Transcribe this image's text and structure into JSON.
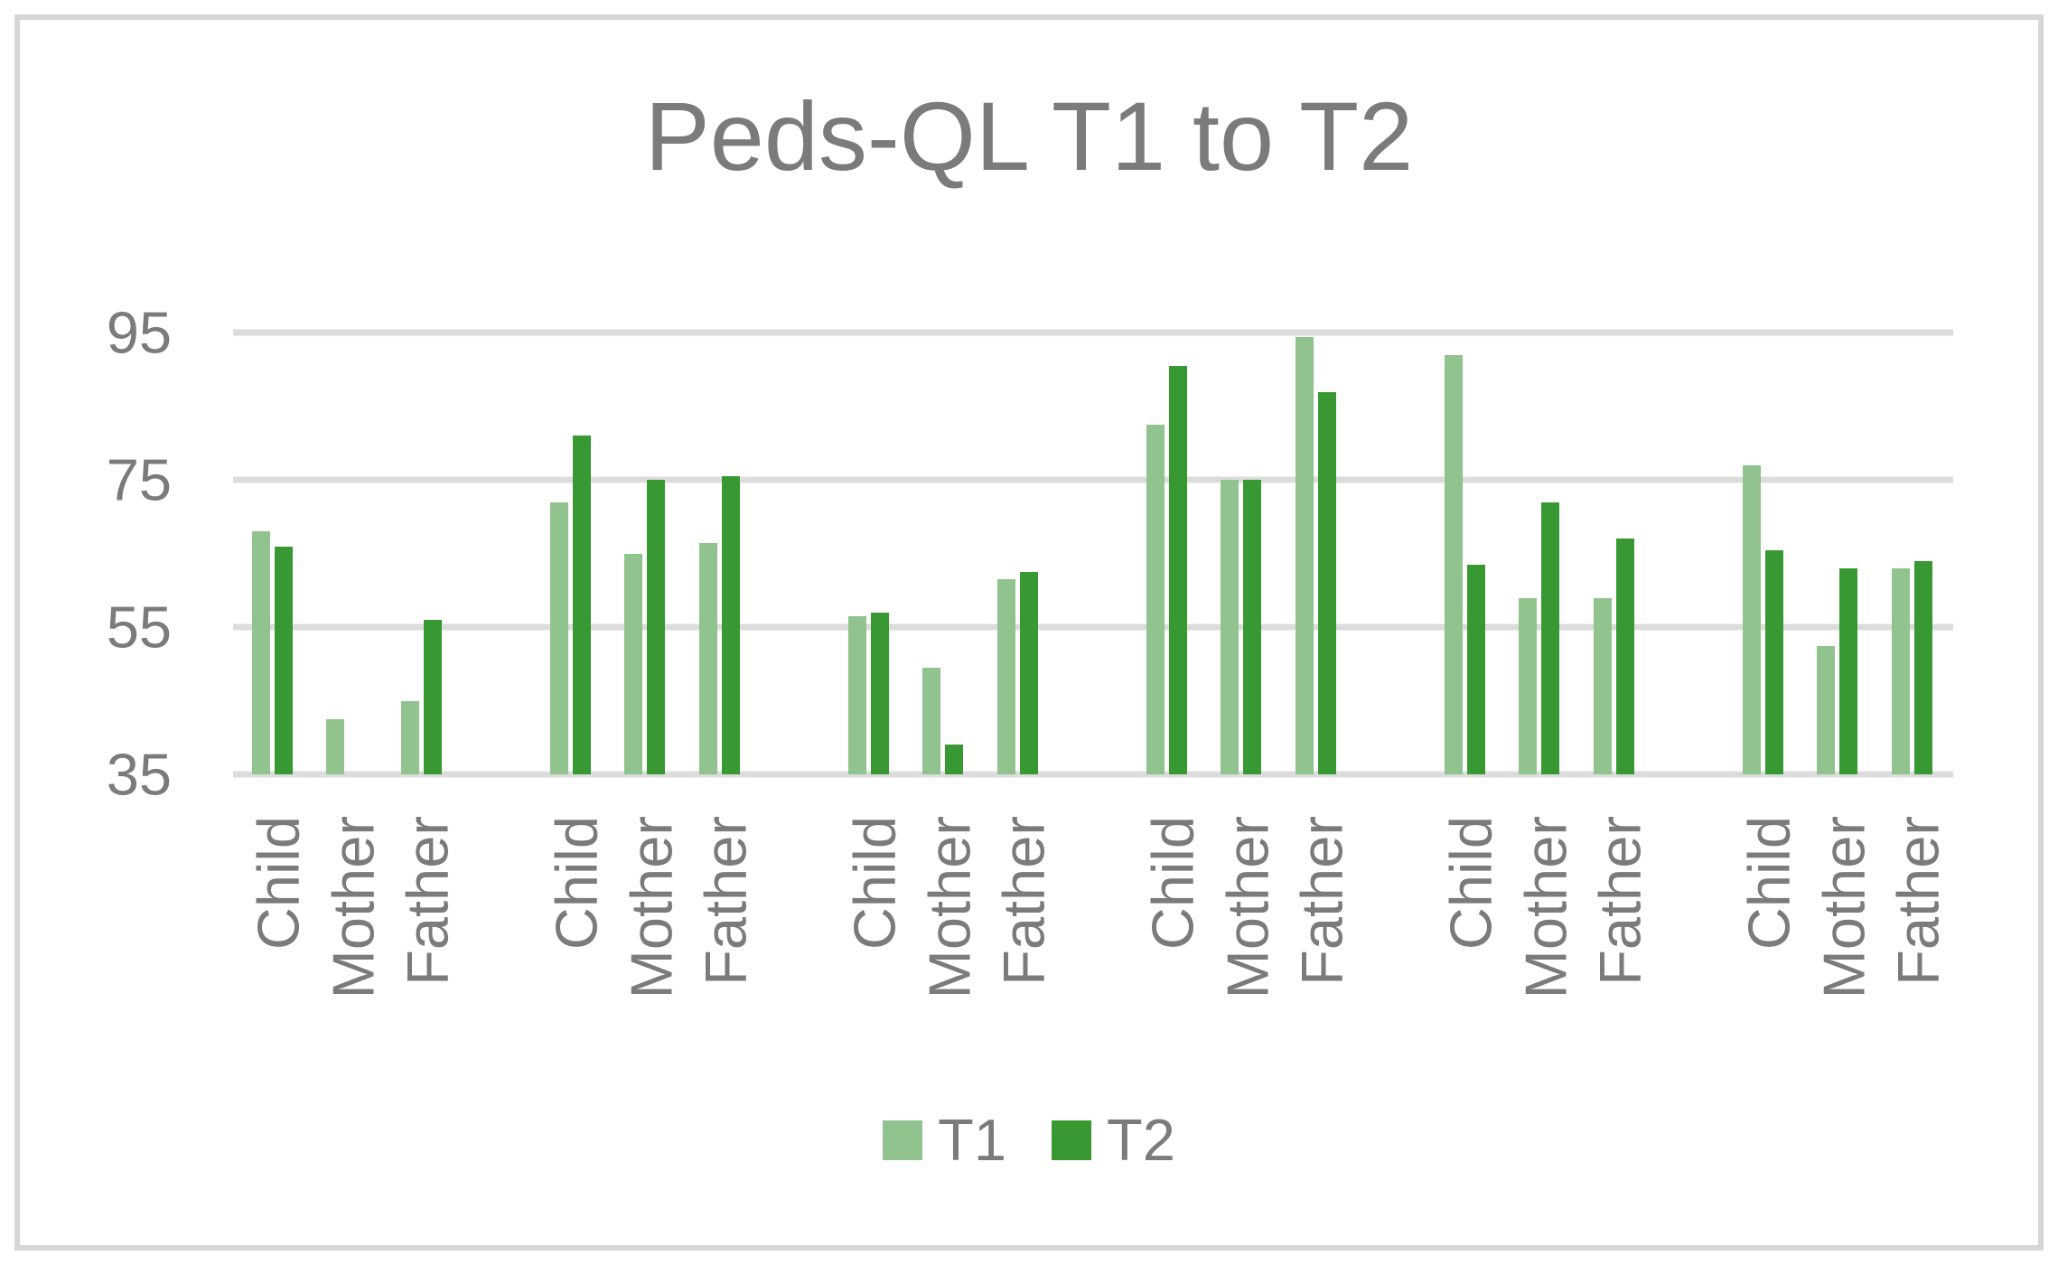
{
  "title": "Peds-QL T1 to T2",
  "legend": {
    "t1_label": "T1",
    "t2_label": "T2"
  },
  "colors": {
    "t1": "#90C38E",
    "t2": "#389932",
    "gridline": "#DCDCDC",
    "frame_border": "#D6D6D6",
    "text": "#7B7B7B"
  },
  "chart_data": {
    "type": "bar",
    "title": "Peds-QL T1 to T2",
    "xlabel": "",
    "ylabel": "",
    "ylim": [
      35,
      105
    ],
    "yticks": [
      35,
      55,
      75,
      95
    ],
    "grid": true,
    "legend_position": "bottom",
    "series_names": [
      "T1",
      "T2"
    ],
    "groups": [
      {
        "categories": [
          "Child",
          "Mother",
          "Father"
        ],
        "T1": [
          68,
          42.5,
          45
        ],
        "T2": [
          66,
          null,
          56
        ]
      },
      {
        "categories": [
          "Child",
          "Mother",
          "Father"
        ],
        "T1": [
          72,
          65,
          66.5
        ],
        "T2": [
          81,
          75,
          75.5
        ]
      },
      {
        "categories": [
          "Child",
          "Mother",
          "Father"
        ],
        "T1": [
          56.5,
          49.5,
          61.5
        ],
        "T2": [
          57,
          39,
          62.5
        ]
      },
      {
        "categories": [
          "Child",
          "Mother",
          "Father"
        ],
        "T1": [
          82.5,
          75,
          94.5
        ],
        "T2": [
          90.5,
          75,
          87
        ]
      },
      {
        "categories": [
          "Child",
          "Mother",
          "Father"
        ],
        "T1": [
          92,
          59,
          59
        ],
        "T2": [
          63.5,
          72,
          67
        ]
      },
      {
        "categories": [
          "Child",
          "Mother",
          "Father"
        ],
        "T1": [
          77,
          52.5,
          63
        ],
        "T2": [
          65.5,
          63,
          64
        ]
      }
    ]
  }
}
